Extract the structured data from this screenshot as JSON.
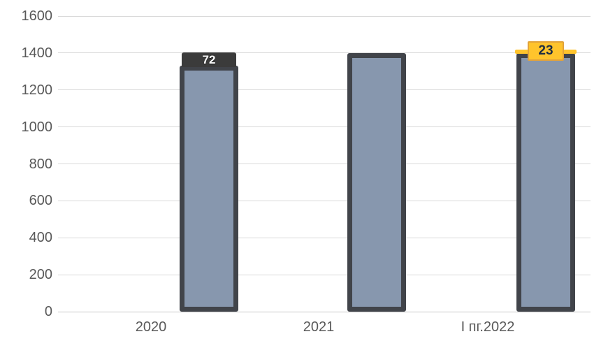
{
  "chart_data": {
    "type": "bar",
    "title": "",
    "subtitle": "",
    "categories": [
      "2020",
      "2021",
      "I пг.2022"
    ],
    "series": [
      {
        "name": "base-bars",
        "color": "#8797AE",
        "border_color": "#41444A",
        "values": [
          1330,
          1400,
          1400
        ],
        "labels": [
          "",
          "",
          ""
        ]
      },
      {
        "name": "delta-dark-cap",
        "color": "#3B3B3B",
        "label_color": "#FFFFFF",
        "values": [
          72,
          0,
          0
        ],
        "labels": [
          "72",
          "",
          ""
        ]
      },
      {
        "name": "delta-yellow-cap",
        "color": "#FFC42C",
        "border_color": "#E2A33A",
        "label_color": "#1F2D42",
        "values": [
          0,
          0,
          23
        ],
        "labels": [
          "",
          "",
          "23"
        ]
      }
    ],
    "xlabel": "",
    "ylabel": "",
    "ylim": [
      0,
      1600
    ],
    "ytick_step": 200,
    "yticks": [
      0,
      200,
      400,
      600,
      800,
      1000,
      1200,
      1400,
      1600
    ],
    "grid": "horizontal",
    "legend": "none",
    "axis_text_color": "#595959",
    "gridline_color": "#D9D9D9",
    "zero_line_color": "#C6C6C6",
    "background": "#FFFFFF"
  }
}
